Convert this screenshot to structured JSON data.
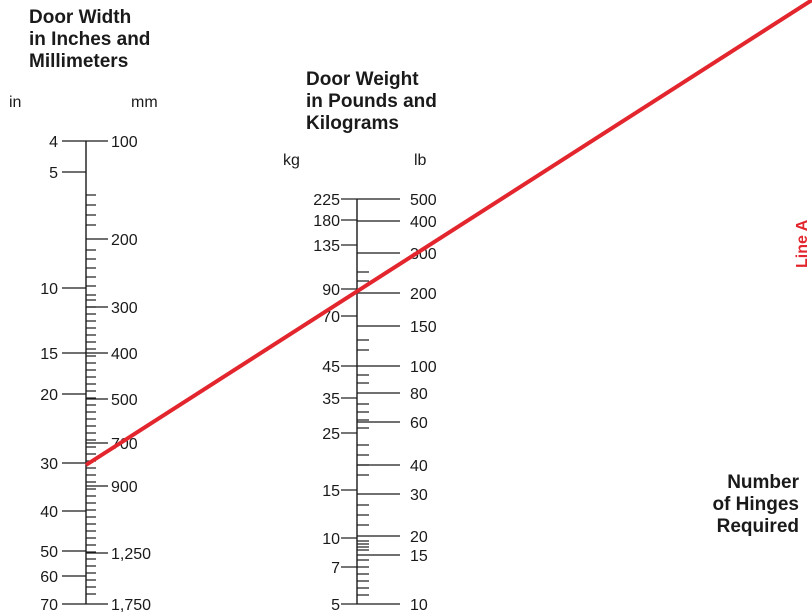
{
  "width_scale": {
    "title_lines": [
      "Door Width",
      "in Inches and",
      "Millimeters"
    ],
    "left_unit": "in",
    "right_unit": "mm",
    "left_labels": [
      {
        "text": "4",
        "value": 4
      },
      {
        "text": "5",
        "value": 5
      },
      {
        "text": "10",
        "value": 10
      },
      {
        "text": "15",
        "value": 15
      },
      {
        "text": "20",
        "value": 20
      },
      {
        "text": "30",
        "value": 30
      },
      {
        "text": "40",
        "value": 40
      },
      {
        "text": "50",
        "value": 50
      },
      {
        "text": "60",
        "value": 60
      },
      {
        "text": "70",
        "value": 70
      }
    ],
    "right_labels": [
      {
        "text": "100",
        "value": 100
      },
      {
        "text": "200",
        "value": 200
      },
      {
        "text": "300",
        "value": 300
      },
      {
        "text": "400",
        "value": 400
      },
      {
        "text": "500",
        "value": 500
      },
      {
        "text": "700",
        "value": 700
      },
      {
        "text": "900",
        "value": 900
      },
      {
        "text": "1,250",
        "value": 1250
      },
      {
        "text": "1,750",
        "value": 1750
      }
    ]
  },
  "weight_scale": {
    "title_lines": [
      "Door Weight",
      "in Pounds and",
      "Kilograms"
    ],
    "left_unit": "kg",
    "right_unit": "lb",
    "left_labels": [
      {
        "text": "225",
        "value": 225
      },
      {
        "text": "180",
        "value": 180
      },
      {
        "text": "135",
        "value": 135
      },
      {
        "text": "90",
        "value": 90
      },
      {
        "text": "70",
        "value": 70
      },
      {
        "text": "45",
        "value": 45
      },
      {
        "text": "35",
        "value": 35
      },
      {
        "text": "25",
        "value": 25
      },
      {
        "text": "15",
        "value": 15
      },
      {
        "text": "10",
        "value": 10
      },
      {
        "text": "7",
        "value": 7
      },
      {
        "text": "5",
        "value": 5
      }
    ],
    "right_labels": [
      {
        "text": "500",
        "value": 500
      },
      {
        "text": "400",
        "value": 400
      },
      {
        "text": "300",
        "value": 300
      },
      {
        "text": "200",
        "value": 200
      },
      {
        "text": "150",
        "value": 150
      },
      {
        "text": "100",
        "value": 100
      },
      {
        "text": "80",
        "value": 80
      },
      {
        "text": "60",
        "value": 60
      },
      {
        "text": "40",
        "value": 40
      },
      {
        "text": "30",
        "value": 30
      },
      {
        "text": "20",
        "value": 20
      },
      {
        "text": "15",
        "value": 15
      },
      {
        "text": "10",
        "value": 10
      }
    ]
  },
  "hinges_label_lines": [
    "Number",
    "of Hinges",
    "Required"
  ],
  "line_a": {
    "label": "Line A",
    "color": "#e3262e"
  }
}
